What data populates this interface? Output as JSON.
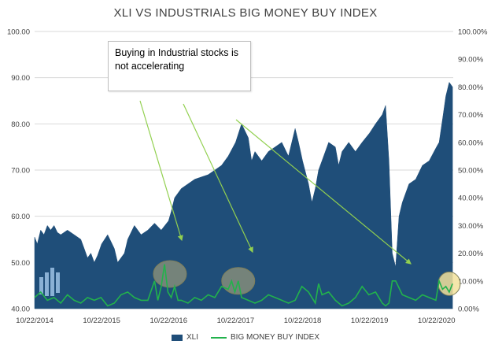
{
  "chart_data": {
    "type": "area",
    "title": "XLI VS INDUSTRIALS BIG MONEY BUY INDEX",
    "x_tick_labels": [
      "10/22/2014",
      "10/22/2015",
      "10/22/2016",
      "10/22/2017",
      "10/22/2018",
      "10/22/2019",
      "10/22/2020"
    ],
    "y_left": {
      "ticks": [
        "40.00",
        "50.00",
        "60.00",
        "70.00",
        "80.00",
        "90.00",
        "100.00"
      ],
      "min": 40,
      "max": 100
    },
    "y_right": {
      "ticks": [
        "0.00%",
        "10.00%",
        "20.00%",
        "30.00%",
        "40.00%",
        "50.00%",
        "60.00%",
        "70.00%",
        "80.00%",
        "90.00%",
        "100.00%"
      ],
      "min": 0,
      "max": 100
    },
    "legend": [
      "XLI",
      "BIG MONEY BUY INDEX"
    ],
    "legend_position": "bottom",
    "grid": true,
    "series": [
      {
        "name": "XLI",
        "kind": "area",
        "axis": "left",
        "color": "#1f4e79",
        "x": [
          2014.81,
          2014.85,
          2014.9,
          2014.95,
          2015.0,
          2015.05,
          2015.1,
          2015.15,
          2015.2,
          2015.3,
          2015.4,
          2015.5,
          2015.55,
          2015.6,
          2015.65,
          2015.7,
          2015.75,
          2015.81,
          2015.9,
          2016.0,
          2016.05,
          2016.1,
          2016.15,
          2016.2,
          2016.3,
          2016.4,
          2016.5,
          2016.6,
          2016.7,
          2016.81,
          2016.85,
          2016.9,
          2017.0,
          2017.1,
          2017.2,
          2017.3,
          2017.4,
          2017.5,
          2017.6,
          2017.7,
          2017.81,
          2017.9,
          2018.0,
          2018.05,
          2018.1,
          2018.15,
          2018.2,
          2018.3,
          2018.4,
          2018.5,
          2018.6,
          2018.7,
          2018.75,
          2018.81,
          2018.9,
          2018.95,
          2019.0,
          2019.05,
          2019.1,
          2019.2,
          2019.3,
          2019.35,
          2019.4,
          2019.5,
          2019.6,
          2019.7,
          2019.81,
          2019.9,
          2020.0,
          2020.05,
          2020.1,
          2020.15,
          2020.2,
          2020.25,
          2020.3,
          2020.4,
          2020.5,
          2020.6,
          2020.7,
          2020.81,
          2020.85,
          2020.9,
          2020.95,
          2021.0,
          2021.05
        ],
        "y": [
          55.5,
          54,
          57,
          56,
          58,
          57,
          58,
          56.5,
          56,
          57,
          56,
          55,
          53,
          51,
          52,
          50,
          51.5,
          54,
          56,
          53,
          50,
          51,
          52,
          55,
          58,
          56,
          57,
          58.5,
          57,
          59,
          61,
          64,
          66,
          67,
          68,
          68.5,
          69,
          70,
          71,
          73,
          76,
          80,
          77,
          72,
          74,
          73,
          72,
          74,
          75,
          76,
          73,
          79,
          76,
          72,
          67,
          63,
          66,
          70,
          72,
          76,
          75,
          71,
          74,
          76,
          74,
          76,
          78,
          80,
          82,
          84,
          72,
          52,
          49,
          60,
          63,
          67,
          68,
          71,
          72,
          75,
          76,
          81,
          86,
          89,
          88
        ]
      },
      {
        "name": "BIG MONEY BUY INDEX",
        "kind": "line",
        "axis": "right",
        "color": "#22b24c",
        "x": [
          2014.81,
          2014.9,
          2015.0,
          2015.1,
          2015.2,
          2015.3,
          2015.4,
          2015.5,
          2015.6,
          2015.7,
          2015.8,
          2015.9,
          2016.0,
          2016.1,
          2016.2,
          2016.3,
          2016.4,
          2016.5,
          2016.6,
          2016.65,
          2016.7,
          2016.75,
          2016.8,
          2016.85,
          2016.9,
          2016.95,
          2017.0,
          2017.1,
          2017.2,
          2017.3,
          2017.4,
          2017.5,
          2017.6,
          2017.7,
          2017.75,
          2017.8,
          2017.85,
          2017.9,
          2018.0,
          2018.1,
          2018.2,
          2018.3,
          2018.4,
          2018.5,
          2018.6,
          2018.7,
          2018.8,
          2018.9,
          2019.0,
          2019.05,
          2019.1,
          2019.2,
          2019.3,
          2019.4,
          2019.5,
          2019.6,
          2019.7,
          2019.8,
          2019.9,
          2020.0,
          2020.05,
          2020.1,
          2020.15,
          2020.2,
          2020.3,
          2020.4,
          2020.5,
          2020.6,
          2020.7,
          2020.8,
          2020.85,
          2020.9,
          2020.95,
          2021.0,
          2021.05
        ],
        "y": [
          4,
          6,
          3,
          4,
          2,
          5,
          3,
          2,
          4,
          3,
          4,
          1,
          2,
          5,
          6,
          4,
          3,
          3,
          10,
          3,
          8,
          16,
          6,
          4,
          8,
          3,
          3,
          2,
          4,
          3,
          5,
          4,
          8,
          7,
          10,
          6,
          10,
          4,
          3,
          2,
          3,
          5,
          4,
          3,
          2,
          3,
          8,
          6,
          2,
          9,
          5,
          6,
          3,
          1,
          2,
          4,
          8,
          5,
          6,
          2,
          1,
          2,
          10,
          10,
          5,
          4,
          3,
          5,
          4,
          3,
          10,
          7,
          8,
          6,
          9
        ]
      }
    ],
    "annotation": "Buying in Industrial stocks is not accelerating"
  },
  "colors": {
    "area": "#1f4e79",
    "line": "#22b24c",
    "arrow": "#92d050",
    "circle": "#9a9a7a",
    "grid": "#d9d9d9"
  }
}
